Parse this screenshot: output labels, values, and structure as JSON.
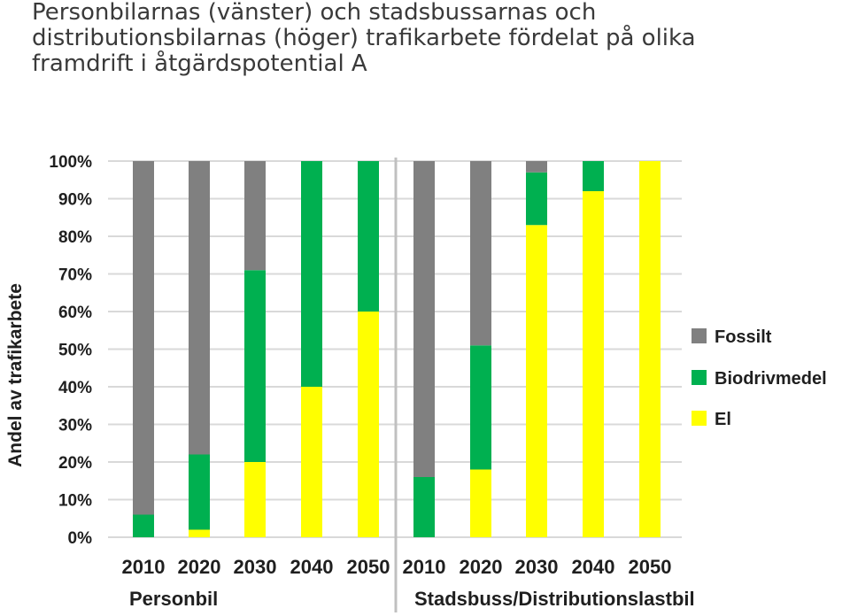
{
  "title_lines": [
    "Personbilarnas (vänster) och stadsbussarnas och",
    "distributionsbilarnas (höger) trafikarbete fördelat på olika",
    "framdrift i åtgärdspotential A"
  ],
  "chart_data": {
    "type": "bar",
    "stacked": true,
    "ylabel": "Andel av trafikarbete",
    "ylim": [
      0,
      100
    ],
    "yticks": [
      "0%",
      "10%",
      "20%",
      "30%",
      "40%",
      "50%",
      "60%",
      "70%",
      "80%",
      "90%",
      "100%"
    ],
    "grid": true,
    "legend_position": "right",
    "groups": [
      {
        "label": "Personbil",
        "categories": [
          "2010",
          "2020",
          "2030",
          "2040",
          "2050"
        ]
      },
      {
        "label": "Stadsbuss/Distributionslastbil",
        "categories": [
          "2010",
          "2020",
          "2030",
          "2040",
          "2050"
        ]
      }
    ],
    "series": [
      {
        "name": "El",
        "color": "#ffff00",
        "values": [
          0,
          2,
          20,
          40,
          60,
          0,
          18,
          83,
          92,
          100
        ]
      },
      {
        "name": "Biodrivmedel",
        "color": "#00b050",
        "values": [
          6,
          20,
          51,
          60,
          40,
          16,
          33,
          14,
          8,
          0
        ]
      },
      {
        "name": "Fossilt",
        "color": "#808080",
        "values": [
          94,
          78,
          29,
          0,
          0,
          84,
          49,
          3,
          0,
          0
        ]
      }
    ],
    "legend_order": [
      "Fossilt",
      "Biodrivmedel",
      "El"
    ]
  }
}
